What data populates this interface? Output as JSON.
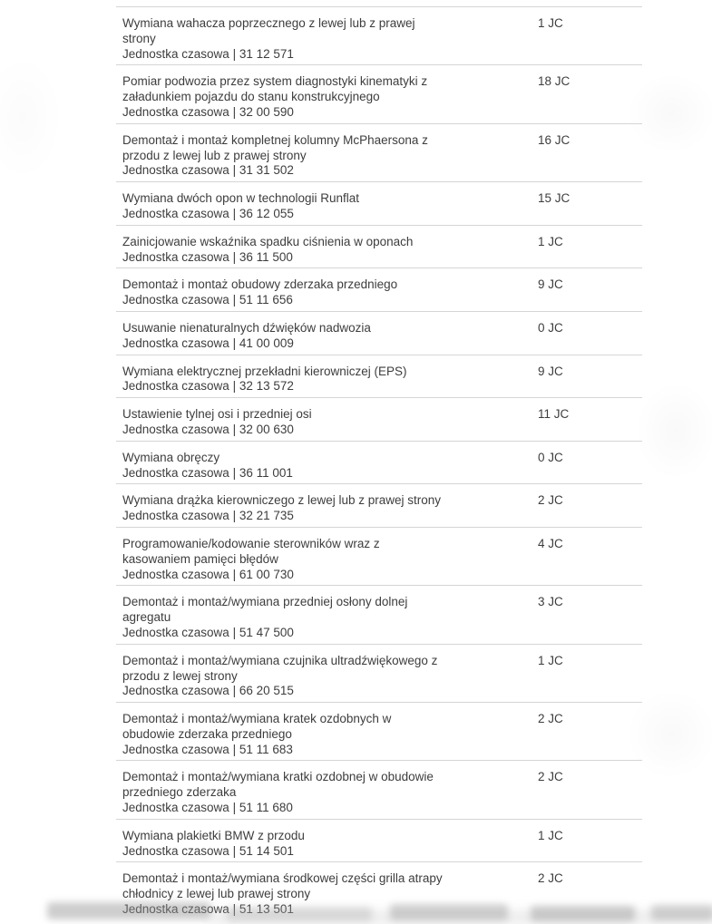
{
  "page": {
    "language": "pl",
    "unit_abbreviation": "JC",
    "unit_line_prefix": "Jednostka czasowa"
  },
  "colors": {
    "text": "#3d3d3d",
    "divider": "#d5d5d5",
    "background": "#ffffff",
    "watermark": "#919191"
  },
  "table": {
    "rows": [
      {
        "title": "Wymiana wahacza poprzecznego z lewej lub z prawej\nstrony",
        "code": "Jednostka czasowa | 31 12 571",
        "value": "1 JC"
      },
      {
        "title": "Pomiar podwozia przez system diagnostyki kinematyki z\nzaładunkiem pojazdu do stanu konstrukcyjnego",
        "code": "Jednostka czasowa | 32 00 590",
        "value": "18 JC"
      },
      {
        "title": "Demontaż i montaż kompletnej kolumny McPhaersona z\nprzodu z lewej lub z prawej strony",
        "code": "Jednostka czasowa | 31 31 502",
        "value": "16 JC"
      },
      {
        "title": "Wymiana dwóch opon w technologii Runflat",
        "code": "Jednostka czasowa | 36 12 055",
        "value": "15 JC"
      },
      {
        "title": "Zainicjowanie wskaźnika spadku ciśnienia w oponach",
        "code": "Jednostka czasowa | 36 11 500",
        "value": "1 JC"
      },
      {
        "title": "Demontaż i montaż obudowy zderzaka przedniego",
        "code": "Jednostka czasowa | 51 11 656",
        "value": "9 JC"
      },
      {
        "title": "Usuwanie nienaturalnych dźwięków nadwozia",
        "code": "Jednostka czasowa | 41 00 009",
        "value": "0 JC"
      },
      {
        "title": "Wymiana elektrycznej przekładni kierowniczej (EPS)",
        "code": "Jednostka czasowa | 32 13 572",
        "value": "9 JC"
      },
      {
        "title": "Ustawienie tylnej osi i przedniej osi",
        "code": "Jednostka czasowa | 32 00 630",
        "value": "11 JC"
      },
      {
        "title": "Wymiana obręczy",
        "code": "Jednostka czasowa | 36 11 001",
        "value": "0 JC"
      },
      {
        "title": "Wymiana drążka kierowniczego z lewej lub z prawej strony",
        "code": "Jednostka czasowa | 32 21 735",
        "value": "2 JC"
      },
      {
        "title": "Programowanie/kodowanie sterowników wraz z\nkasowaniem pamięci błędów",
        "code": "Jednostka czasowa | 61 00 730",
        "value": "4 JC"
      },
      {
        "title": "Demontaż i montaż/wymiana przedniej osłony dolnej\nagregatu",
        "code": "Jednostka czasowa | 51 47 500",
        "value": "3 JC"
      },
      {
        "title": "Demontaż i montaż/wymiana czujnika ultradźwiękowego z\nprzodu z lewej strony",
        "code": "Jednostka czasowa | 66 20 515",
        "value": "1 JC"
      },
      {
        "title": "Demontaż i montaż/wymiana kratek ozdobnych w\nobudowie zderzaka przedniego",
        "code": "Jednostka czasowa | 51 11 683",
        "value": "2 JC"
      },
      {
        "title": "Demontaż i montaż/wymiana kratki ozdobnej w obudowie\nprzedniego zderzaka",
        "code": "Jednostka czasowa | 51 11 680",
        "value": "2 JC"
      },
      {
        "title": "Wymiana plakietki BMW z przodu",
        "code": "Jednostka czasowa | 51 14 501",
        "value": "1 JC"
      },
      {
        "title": "Demontaż i montaż/wymiana środkowej części grilla atrapy\nchłodnicy z lewej lub prawej strony",
        "code": "Jednostka czasowa | 51 13 501",
        "value": "2 JC"
      }
    ]
  }
}
